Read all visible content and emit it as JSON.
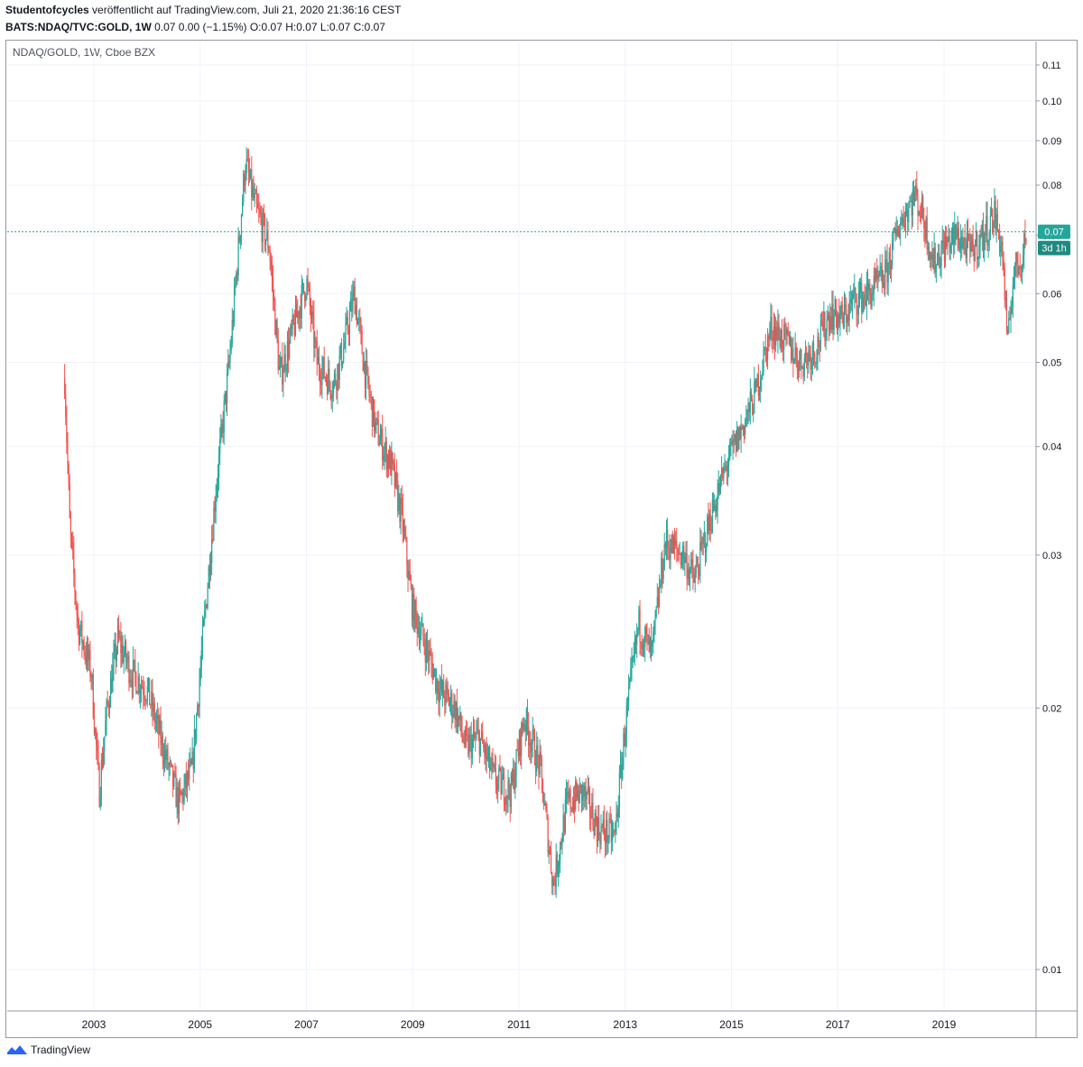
{
  "header": {
    "line1_author": "Studentofcycles",
    "line1_rest": " veröffentlicht auf TradingView.com, Juli 21, 2020 21:36:16 CEST",
    "symbol": "BATS:NDAQ/TVC:GOLD, 1W",
    "ohlc": "0.07 0.00 (−1.15%) O:0.07 H:0.07 L:0.07 C:0.07"
  },
  "chart_legend": "NDAQ/GOLD, 1W, Cboe BZX",
  "price_badge": "0.07",
  "countdown_badge": "3d 1h",
  "footer_brand": "TradingView",
  "colors": {
    "up": "#26a69a",
    "down": "#ef5350",
    "grid": "#f0f3fa",
    "price_line": "#26a69a",
    "logo": "#2962ff"
  },
  "chart_data": {
    "type": "candlestick",
    "scale": "log",
    "ylim": [
      0.009,
      0.12
    ],
    "y_ticks": [
      0.01,
      0.02,
      0.03,
      0.04,
      0.05,
      0.06,
      0.07,
      0.08,
      0.09,
      0.1,
      0.11
    ],
    "y_tick_labels": [
      "0.01",
      "0.02",
      "0.03",
      "0.04",
      "0.05",
      "0.06",
      "0.07",
      "0.08",
      "0.09",
      "0.10",
      "0.11"
    ],
    "x_ticks": [
      2003,
      2005,
      2007,
      2009,
      2011,
      2013,
      2015,
      2017,
      2019
    ],
    "x_tick_labels": [
      "2003",
      "2005",
      "2007",
      "2009",
      "2011",
      "2013",
      "2015",
      "2017",
      "2019"
    ],
    "last_price": 0.0707,
    "path_points": [
      [
        2002.45,
        0.048
      ],
      [
        2002.55,
        0.032
      ],
      [
        2002.7,
        0.025
      ],
      [
        2002.95,
        0.022
      ],
      [
        2003.1,
        0.016
      ],
      [
        2003.25,
        0.02
      ],
      [
        2003.45,
        0.024
      ],
      [
        2003.7,
        0.022
      ],
      [
        2004.0,
        0.021
      ],
      [
        2004.3,
        0.018
      ],
      [
        2004.6,
        0.0155
      ],
      [
        2004.85,
        0.017
      ],
      [
        2005.05,
        0.024
      ],
      [
        2005.3,
        0.036
      ],
      [
        2005.55,
        0.05
      ],
      [
        2005.85,
        0.085
      ],
      [
        2006.05,
        0.075
      ],
      [
        2006.3,
        0.068
      ],
      [
        2006.5,
        0.048
      ],
      [
        2006.8,
        0.056
      ],
      [
        2007.0,
        0.062
      ],
      [
        2007.2,
        0.05
      ],
      [
        2007.5,
        0.047
      ],
      [
        2007.7,
        0.052
      ],
      [
        2007.9,
        0.06
      ],
      [
        2008.1,
        0.049
      ],
      [
        2008.3,
        0.042
      ],
      [
        2008.6,
        0.038
      ],
      [
        2008.8,
        0.033
      ],
      [
        2009.0,
        0.026
      ],
      [
        2009.3,
        0.023
      ],
      [
        2009.5,
        0.021
      ],
      [
        2009.8,
        0.02
      ],
      [
        2010.0,
        0.018
      ],
      [
        2010.25,
        0.0185
      ],
      [
        2010.55,
        0.0165
      ],
      [
        2010.85,
        0.016
      ],
      [
        2011.1,
        0.0195
      ],
      [
        2011.4,
        0.017
      ],
      [
        2011.65,
        0.0125
      ],
      [
        2011.9,
        0.0155
      ],
      [
        2012.2,
        0.016
      ],
      [
        2012.5,
        0.0145
      ],
      [
        2012.8,
        0.0142
      ],
      [
        2013.0,
        0.019
      ],
      [
        2013.25,
        0.025
      ],
      [
        2013.5,
        0.023
      ],
      [
        2013.75,
        0.031
      ],
      [
        2014.1,
        0.03
      ],
      [
        2014.3,
        0.028
      ],
      [
        2014.6,
        0.033
      ],
      [
        2014.9,
        0.038
      ],
      [
        2015.2,
        0.042
      ],
      [
        2015.45,
        0.046
      ],
      [
        2015.75,
        0.055
      ],
      [
        2016.0,
        0.053
      ],
      [
        2016.3,
        0.05
      ],
      [
        2016.6,
        0.052
      ],
      [
        2016.85,
        0.057
      ],
      [
        2017.1,
        0.056
      ],
      [
        2017.3,
        0.059
      ],
      [
        2017.6,
        0.06
      ],
      [
        2017.9,
        0.063
      ],
      [
        2018.15,
        0.072
      ],
      [
        2018.45,
        0.078
      ],
      [
        2018.6,
        0.074
      ],
      [
        2018.8,
        0.065
      ],
      [
        2019.0,
        0.068
      ],
      [
        2019.25,
        0.07
      ],
      [
        2019.5,
        0.067
      ],
      [
        2019.75,
        0.07
      ],
      [
        2019.95,
        0.074
      ],
      [
        2020.1,
        0.067
      ],
      [
        2020.2,
        0.052
      ],
      [
        2020.3,
        0.063
      ],
      [
        2020.45,
        0.066
      ],
      [
        2020.55,
        0.0707
      ]
    ]
  }
}
